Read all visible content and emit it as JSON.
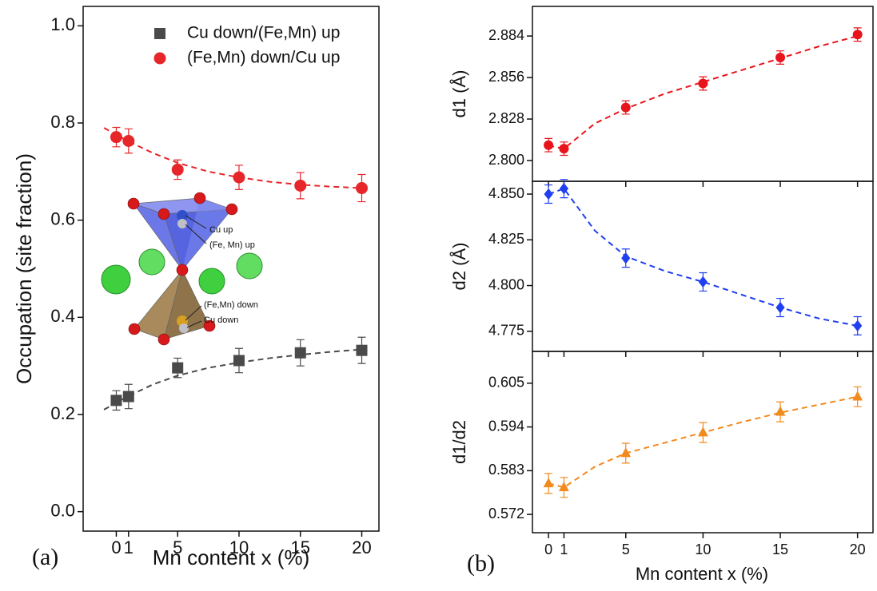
{
  "chart_data": [
    {
      "type": "scatter",
      "panel_label": "(a)",
      "xlabel": "Mn content x (%)",
      "ylabel": "Occupation (site fraction)",
      "xlim": [
        -2.7,
        21.4
      ],
      "xticks": [
        0,
        1,
        5,
        10,
        15,
        20
      ],
      "ylim": [
        -0.04,
        1.04
      ],
      "yticks": [
        {
          "value": 0,
          "label": "0.0"
        },
        0.2,
        0.4,
        0.6,
        0.8,
        {
          "value": 1,
          "label": "1.0"
        }
      ],
      "legend": "upper right",
      "annotations": [
        "Cu up",
        "(Fe, Mn) up",
        "(Fe,Mn) down",
        "Cu down"
      ],
      "x": [
        0,
        1,
        5,
        10,
        15,
        20
      ],
      "series": [
        {
          "name": "Cu down/(Fe,Mn) up",
          "color": "#4a4a4a",
          "marker": "square",
          "values": [
            0.229,
            0.237,
            0.296,
            0.311,
            0.327,
            0.332
          ],
          "errors": [
            0.02,
            0.025,
            0.02,
            0.025,
            0.027,
            0.027
          ],
          "fit": {
            "x": [
              -1,
              1,
              3,
              5,
              7.5,
              10,
              12.5,
              15,
              17.5,
              20
            ],
            "values": [
              0.21,
              0.238,
              0.262,
              0.28,
              0.296,
              0.307,
              0.316,
              0.323,
              0.329,
              0.334
            ]
          }
        },
        {
          "name": "(Fe,Mn) down/Cu up",
          "color": "#e6262a",
          "marker": "circle",
          "values": [
            0.771,
            0.763,
            0.704,
            0.688,
            0.671,
            0.666
          ],
          "errors": [
            0.02,
            0.025,
            0.02,
            0.025,
            0.027,
            0.028
          ],
          "fit": {
            "x": [
              -1,
              1,
              3,
              5,
              7.5,
              10,
              12.5,
              15,
              17.5,
              20
            ],
            "values": [
              0.79,
              0.762,
              0.738,
              0.718,
              0.7,
              0.688,
              0.679,
              0.673,
              0.669,
              0.666
            ]
          }
        }
      ]
    },
    {
      "type": "scatter",
      "ylabel": "d1 (Å)",
      "xtick_labels": false,
      "xlim": [
        -1.04,
        21.0
      ],
      "xticks": [
        0,
        1,
        5,
        10,
        15,
        20
      ],
      "ylim": [
        2.786,
        2.904
      ],
      "yticks": [
        {
          "value": 2.8,
          "label": "2.800"
        },
        2.828,
        2.856,
        2.884
      ],
      "x": [
        0,
        1,
        5,
        10,
        15,
        20
      ],
      "series": [
        {
          "color": "#e8141b",
          "marker": "circle",
          "values": [
            2.8104,
            2.808,
            2.8358,
            2.852,
            2.8695,
            2.885
          ],
          "errors": [
            0.0045,
            0.0045,
            0.0045,
            0.0045,
            0.0045,
            0.0045
          ],
          "fit": {
            "x": [
              0,
              1,
              3,
              5,
              7.5,
              10,
              12.5,
              15,
              17.5,
              20
            ],
            "values": [
              2.81,
              2.808,
              2.825,
              2.835,
              2.845,
              2.853,
              2.861,
              2.869,
              2.877,
              2.884
            ]
          }
        }
      ]
    },
    {
      "type": "scatter",
      "ylabel": "d2 (Å)",
      "xtick_labels": false,
      "xlim": [
        -1.04,
        21.0
      ],
      "xticks": [
        0,
        1,
        5,
        10,
        15,
        20
      ],
      "ylim": [
        4.764,
        4.857
      ],
      "yticks": [
        4.775,
        {
          "value": 4.8,
          "label": "4.800"
        },
        4.825,
        {
          "value": 4.85,
          "label": "4.850"
        }
      ],
      "x": [
        0,
        1,
        5,
        10,
        15,
        20
      ],
      "series": [
        {
          "color": "#1f3ff0",
          "marker": "diamond",
          "values": [
            4.85,
            4.853,
            4.815,
            4.802,
            4.788,
            4.778
          ],
          "errors": [
            0.005,
            0.005,
            0.005,
            0.005,
            0.005,
            0.005
          ],
          "fit": {
            "x": [
              0,
              1,
              3,
              5,
              7.5,
              10,
              12.5,
              15,
              17.5,
              20
            ],
            "values": [
              4.85,
              4.853,
              4.83,
              4.816,
              4.808,
              4.802,
              4.795,
              4.788,
              4.782,
              4.778
            ]
          }
        }
      ]
    },
    {
      "type": "scatter",
      "panel_label": "(b)",
      "xlabel": "Mn content x (%)",
      "ylabel": "d1/d2",
      "xlim": [
        -1.04,
        21.0
      ],
      "xticks": [
        0,
        1,
        5,
        10,
        15,
        20
      ],
      "ylim": [
        0.5674,
        0.613
      ],
      "yticks": [
        0.572,
        0.583,
        0.594,
        0.605
      ],
      "x": [
        0,
        1,
        5,
        10,
        15,
        20
      ],
      "series": [
        {
          "color": "#f28a1e",
          "marker": "triangle",
          "values": [
            0.5798,
            0.5788,
            0.5874,
            0.5926,
            0.5978,
            0.6016
          ],
          "errors": [
            0.0025,
            0.0025,
            0.0025,
            0.0025,
            0.0025,
            0.0025
          ],
          "fit": {
            "x": [
              0,
              1,
              3,
              5,
              7.5,
              10,
              12.5,
              15,
              17.5,
              20
            ],
            "values": [
              0.5798,
              0.5788,
              0.584,
              0.5874,
              0.59,
              0.5926,
              0.5952,
              0.5976,
              0.5996,
              0.6016
            ]
          }
        }
      ]
    }
  ]
}
